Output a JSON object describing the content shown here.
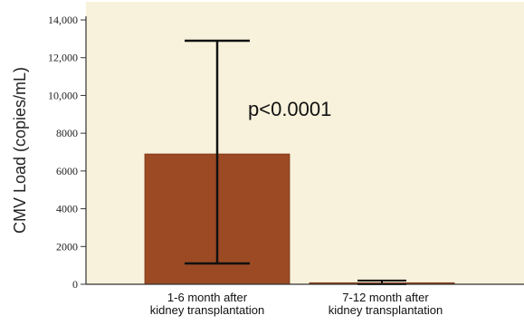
{
  "chart_data": {
    "type": "bar",
    "categories": [
      [
        "1-6 month after",
        "kidney transplantation"
      ],
      [
        "7-12 month after",
        "kidney transplantation"
      ]
    ],
    "values": [
      6900,
      80
    ],
    "error_bars": [
      {
        "low": 1100,
        "high": 12900
      },
      {
        "low": 0,
        "high": 200
      }
    ],
    "ylabel": "CMV Load (copies/mL)",
    "xlabel": "",
    "title": "",
    "ylim": [
      0,
      14000
    ],
    "yticks": [
      {
        "value": 0,
        "label": "0"
      },
      {
        "value": 2000,
        "label": "2000"
      },
      {
        "value": 4000,
        "label": "4000"
      },
      {
        "value": 6000,
        "label": "6000"
      },
      {
        "value": 8000,
        "label": "8000"
      },
      {
        "value": 10000,
        "label": "10,000"
      },
      {
        "value": 12000,
        "label": "12,000"
      },
      {
        "value": 14000,
        "label": "14,000"
      }
    ],
    "annotation": "p<0.0001",
    "grid": false
  },
  "colors": {
    "plot_background": "#f8f2dc",
    "bar": "#9c4a24",
    "bar_edge": "#7a3616",
    "axis": "#333333",
    "error_bar": "#111111"
  }
}
